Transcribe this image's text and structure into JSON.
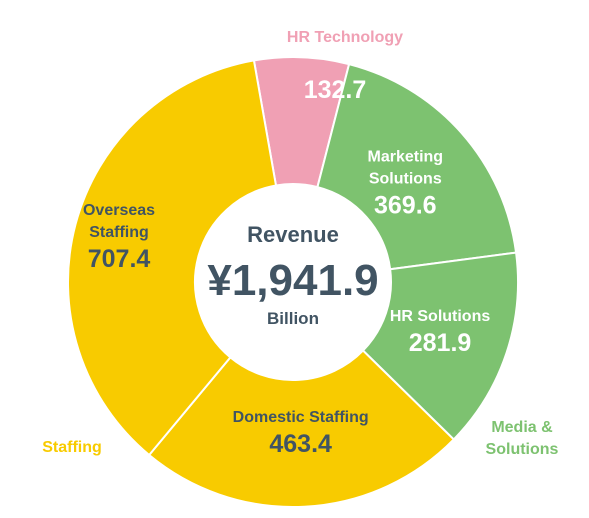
{
  "chart_data": {
    "type": "pie",
    "subtype": "donut",
    "center": {
      "title": "Revenue",
      "value": "¥1,941.9",
      "unit": "Billion"
    },
    "segments": [
      {
        "name": "HR Technology",
        "value": 132.7,
        "value_label": "132.7",
        "group": "HR Technology",
        "color": "#f0a0b4",
        "text_color": "#ffffff"
      },
      {
        "name": "Marketing Solutions",
        "value": 369.6,
        "value_label": "369.6",
        "group": "Media & Solutions",
        "color": "#7dc270",
        "text_color": "#ffffff"
      },
      {
        "name": "HR Solutions",
        "value": 281.9,
        "value_label": "281.9",
        "group": "Media & Solutions",
        "color": "#7dc270",
        "text_color": "#ffffff"
      },
      {
        "name": "Domestic Staffing",
        "value": 463.4,
        "value_label": "463.4",
        "group": "Staffing",
        "color": "#f8cb00",
        "text_color": "#415463"
      },
      {
        "name": "Overseas Staffing",
        "value": 707.4,
        "value_label": "707.4",
        "group": "Staffing",
        "color": "#f8cb00",
        "text_color": "#415463"
      }
    ],
    "groups": [
      {
        "name": "HR Technology",
        "color": "#f0a0b4"
      },
      {
        "name": "Media & Solutions",
        "color": "#7dc270"
      },
      {
        "name": "Staffing",
        "color": "#f8cb00"
      }
    ],
    "colors": {
      "center_text": "#415463",
      "separator": "#ffffff"
    }
  }
}
